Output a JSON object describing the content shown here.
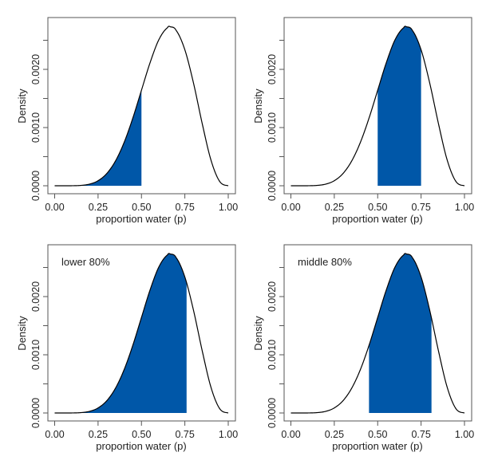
{
  "colors": {
    "fill": "#0057a8",
    "curve": "#000000",
    "axis": "#555555"
  },
  "chart_data": [
    {
      "type": "area",
      "xlabel": "proportion water (p)",
      "ylabel": "Density",
      "annotation": "",
      "xlim": [
        0,
        1
      ],
      "ylim": [
        0,
        0.0028
      ],
      "x_ticks": [
        "0.00",
        "0.25",
        "0.50",
        "0.75",
        "1.00"
      ],
      "y_ticks": [
        "0.0000",
        "0.0010",
        "0.0020"
      ],
      "shaded_interval": [
        0,
        0.5
      ],
      "x": [
        0,
        0.05,
        0.1,
        0.15,
        0.2,
        0.25,
        0.3,
        0.35,
        0.4,
        0.45,
        0.5,
        0.55,
        0.6,
        0.65,
        0.6667,
        0.7,
        0.75,
        0.8,
        0.85,
        0.9,
        0.95,
        1
      ],
      "y": [
        0,
        0.0,
        6e-07,
        5.9e-06,
        2.75e-05,
        8.65e-05,
        0.00021,
        0.000424,
        0.000743,
        0.001161,
        0.001641,
        0.002118,
        0.002508,
        0.002716,
        0.002731,
        0.002668,
        0.002336,
        0.001762,
        0.001069,
        0.000446,
        7.7e-05,
        0
      ]
    },
    {
      "type": "area",
      "xlabel": "proportion water (p)",
      "ylabel": "Density",
      "annotation": "",
      "xlim": [
        0,
        1
      ],
      "ylim": [
        0,
        0.0028
      ],
      "x_ticks": [
        "0.00",
        "0.25",
        "0.50",
        "0.75",
        "1.00"
      ],
      "y_ticks": [
        "0.0000",
        "0.0010",
        "0.0020"
      ],
      "shaded_interval": [
        0.5,
        0.75
      ],
      "x": [
        0,
        0.05,
        0.1,
        0.15,
        0.2,
        0.25,
        0.3,
        0.35,
        0.4,
        0.45,
        0.5,
        0.55,
        0.6,
        0.65,
        0.6667,
        0.7,
        0.75,
        0.8,
        0.85,
        0.9,
        0.95,
        1
      ],
      "y": [
        0,
        0.0,
        6e-07,
        5.9e-06,
        2.75e-05,
        8.65e-05,
        0.00021,
        0.000424,
        0.000743,
        0.001161,
        0.001641,
        0.002118,
        0.002508,
        0.002716,
        0.002731,
        0.002668,
        0.002336,
        0.001762,
        0.001069,
        0.000446,
        7.7e-05,
        0
      ]
    },
    {
      "type": "area",
      "xlabel": "proportion water (p)",
      "ylabel": "Density",
      "annotation": "lower 80%",
      "xlim": [
        0,
        1
      ],
      "ylim": [
        0,
        0.0028
      ],
      "x_ticks": [
        "0.00",
        "0.25",
        "0.50",
        "0.75",
        "1.00"
      ],
      "y_ticks": [
        "0.0000",
        "0.0010",
        "0.0020"
      ],
      "shaded_interval": [
        0,
        0.76
      ],
      "x": [
        0,
        0.05,
        0.1,
        0.15,
        0.2,
        0.25,
        0.3,
        0.35,
        0.4,
        0.45,
        0.5,
        0.55,
        0.6,
        0.65,
        0.6667,
        0.7,
        0.75,
        0.8,
        0.85,
        0.9,
        0.95,
        1
      ],
      "y": [
        0,
        0.0,
        6e-07,
        5.9e-06,
        2.75e-05,
        8.65e-05,
        0.00021,
        0.000424,
        0.000743,
        0.001161,
        0.001641,
        0.002118,
        0.002508,
        0.002716,
        0.002731,
        0.002668,
        0.002336,
        0.001762,
        0.001069,
        0.000446,
        7.7e-05,
        0
      ]
    },
    {
      "type": "area",
      "xlabel": "proportion water (p)",
      "ylabel": "Density",
      "annotation": "middle 80%",
      "xlim": [
        0,
        1
      ],
      "ylim": [
        0,
        0.0028
      ],
      "x_ticks": [
        "0.00",
        "0.25",
        "0.50",
        "0.75",
        "1.00"
      ],
      "y_ticks": [
        "0.0000",
        "0.0010",
        "0.0020"
      ],
      "shaded_interval": [
        0.45,
        0.81
      ],
      "x": [
        0,
        0.05,
        0.1,
        0.15,
        0.2,
        0.25,
        0.3,
        0.35,
        0.4,
        0.45,
        0.5,
        0.55,
        0.6,
        0.65,
        0.6667,
        0.7,
        0.75,
        0.8,
        0.85,
        0.9,
        0.95,
        1
      ],
      "y": [
        0,
        0.0,
        6e-07,
        5.9e-06,
        2.75e-05,
        8.65e-05,
        0.00021,
        0.000424,
        0.000743,
        0.001161,
        0.001641,
        0.002118,
        0.002508,
        0.002716,
        0.002731,
        0.002668,
        0.002336,
        0.001762,
        0.001069,
        0.000446,
        7.7e-05,
        0
      ]
    }
  ]
}
